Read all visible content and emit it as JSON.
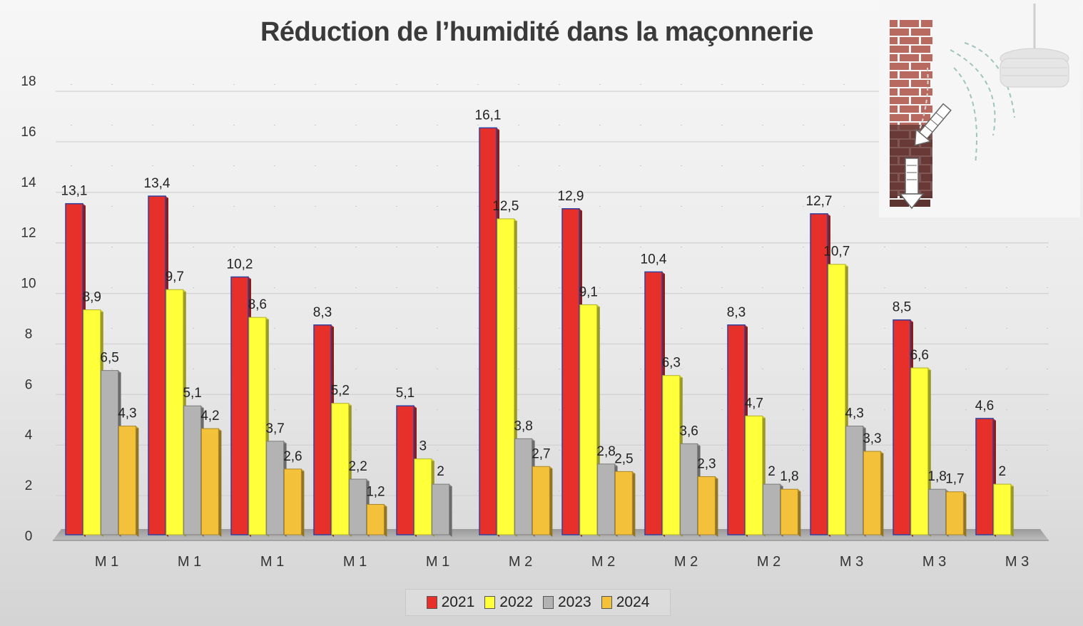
{
  "chart_data": {
    "type": "bar",
    "title": "Réduction de l’humidité dans la maçonnerie",
    "categories": [
      "M 1",
      "M 1",
      "M 1",
      "M 1",
      "M 1",
      "M 2",
      "M 2",
      "M 2",
      "M 2",
      "M 3",
      "M 3",
      "M 3"
    ],
    "series": [
      {
        "name": "2021",
        "color": "#e8302a",
        "values": [
          13.1,
          13.4,
          10.2,
          8.3,
          5.1,
          16.1,
          12.9,
          10.4,
          8.3,
          12.7,
          8.5,
          4.6
        ]
      },
      {
        "name": "2022",
        "color": "#ffff3a",
        "values": [
          8.9,
          9.7,
          8.6,
          5.2,
          3,
          12.5,
          9.1,
          6.3,
          4.7,
          10.7,
          6.6,
          2
        ]
      },
      {
        "name": "2023",
        "color": "#b3b3b3",
        "values": [
          6.5,
          5.1,
          3.7,
          2.2,
          2,
          3.8,
          2.8,
          3.6,
          2,
          4.3,
          1.8,
          null
        ]
      },
      {
        "name": "2024",
        "color": "#f3c13a",
        "values": [
          4.3,
          4.2,
          2.6,
          1.2,
          null,
          2.7,
          2.5,
          2.3,
          1.8,
          3.3,
          1.7,
          null
        ]
      }
    ],
    "data_labels": [
      [
        "13,1",
        "13,4",
        "10,2",
        "8,3",
        "5,1",
        "16,1",
        "12,9",
        "10,4",
        "8,3",
        "12,7",
        "8,5",
        "4,6"
      ],
      [
        "8,9",
        "9,7",
        "8,6",
        "5,2",
        "3",
        "12,5",
        "9,1",
        "6,3",
        "4,7",
        "10,7",
        "6,6",
        "2"
      ],
      [
        "6,5",
        "5,1",
        "3,7",
        "2,2",
        "2",
        "3,8",
        "2,8",
        "3,6",
        "2",
        "4,3",
        "1,8",
        ""
      ],
      [
        "4,3",
        "4,2",
        "2,6",
        "1,2",
        "",
        "2,7",
        "2,5",
        "2,3",
        "1,8",
        "3,3",
        "1,7",
        ""
      ]
    ],
    "ylim": [
      0,
      18
    ],
    "yticks": [
      "0",
      "2",
      "4",
      "6",
      "8",
      "10",
      "12",
      "14",
      "16",
      "18"
    ],
    "grid": true,
    "legend_position": "bottom",
    "style": "3d-column"
  },
  "inset_icon": "masonry-moisture-illustration"
}
